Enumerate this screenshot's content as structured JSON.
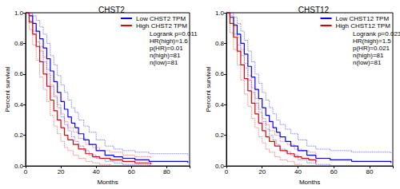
{
  "chart_data": [
    {
      "type": "line",
      "title": "CHST2",
      "x_label": "Months",
      "y_label": "Percent survival",
      "xlim": [
        0,
        93
      ],
      "xticks": [
        0,
        20,
        40,
        60,
        80
      ],
      "ylim": [
        0,
        1
      ],
      "yticks": [
        {
          "value": 0,
          "label": "0.0"
        },
        0.2,
        0.4,
        0.6,
        0.8,
        {
          "value": 1,
          "label": "1.0"
        }
      ],
      "grid": false,
      "legend": "upper right",
      "annotations": [
        "Logrank p=0.011",
        "HR(high)=1.6",
        "p(HR)=0.01",
        "n(high)=81",
        "n(low)=81"
      ],
      "series": [
        {
          "name": "Low CHST2 TPM",
          "color": "#0000ff",
          "line_style": "solid",
          "x": [
            0,
            2,
            4,
            6,
            8,
            10,
            12,
            14,
            16,
            18,
            20,
            22,
            24,
            26,
            28,
            30,
            33,
            36,
            40,
            45,
            50,
            55,
            62,
            70,
            92
          ],
          "values": [
            1.0,
            0.98,
            0.93,
            0.88,
            0.83,
            0.77,
            0.7,
            0.62,
            0.55,
            0.48,
            0.42,
            0.37,
            0.32,
            0.28,
            0.25,
            0.21,
            0.17,
            0.14,
            0.1,
            0.07,
            0.06,
            0.05,
            0.04,
            0.03,
            0.02
          ],
          "ci_lower": [
            1.0,
            0.95,
            0.88,
            0.81,
            0.75,
            0.68,
            0.6,
            0.52,
            0.45,
            0.38,
            0.32,
            0.27,
            0.23,
            0.19,
            0.16,
            0.13,
            0.1,
            0.07,
            0.05,
            0.03,
            0.02,
            0.01,
            0.01,
            0.0,
            0.0
          ],
          "ci_upper": [
            1.0,
            1.0,
            0.98,
            0.95,
            0.91,
            0.86,
            0.8,
            0.72,
            0.66,
            0.59,
            0.53,
            0.48,
            0.43,
            0.38,
            0.35,
            0.3,
            0.26,
            0.22,
            0.17,
            0.13,
            0.11,
            0.1,
            0.09,
            0.08,
            0.07
          ]
        },
        {
          "name": "High CHST2 TPM",
          "color": "#e00000",
          "line_style": "solid",
          "x": [
            0,
            2,
            4,
            6,
            8,
            10,
            12,
            14,
            16,
            18,
            20,
            22,
            24,
            27,
            30,
            34,
            38,
            42,
            48,
            55,
            62,
            71
          ],
          "values": [
            1.0,
            0.94,
            0.86,
            0.78,
            0.68,
            0.6,
            0.52,
            0.43,
            0.36,
            0.3,
            0.25,
            0.2,
            0.17,
            0.14,
            0.11,
            0.08,
            0.06,
            0.05,
            0.04,
            0.03,
            0.02,
            0.01
          ],
          "ci_lower": [
            1.0,
            0.89,
            0.79,
            0.69,
            0.58,
            0.5,
            0.42,
            0.33,
            0.26,
            0.21,
            0.16,
            0.12,
            0.1,
            0.07,
            0.05,
            0.03,
            0.02,
            0.01,
            0.0,
            0.0,
            0.0,
            0.0
          ],
          "ci_upper": [
            1.0,
            0.99,
            0.93,
            0.87,
            0.78,
            0.71,
            0.63,
            0.53,
            0.46,
            0.4,
            0.34,
            0.29,
            0.25,
            0.22,
            0.18,
            0.14,
            0.12,
            0.1,
            0.09,
            0.07,
            0.06,
            0.05
          ]
        }
      ]
    },
    {
      "type": "line",
      "title": "CHST12",
      "x_label": "Months",
      "y_label": "Percent survival",
      "xlim": [
        0,
        93
      ],
      "xticks": [
        0,
        20,
        40,
        60,
        80
      ],
      "ylim": [
        0,
        1
      ],
      "yticks": [
        {
          "value": 0,
          "label": "0.0"
        },
        0.2,
        0.4,
        0.6,
        0.8,
        {
          "value": 1,
          "label": "1.0"
        }
      ],
      "grid": false,
      "legend": "upper right",
      "annotations": [
        "Logrank p=0.023",
        "HR(high)=1.5",
        "p(HR)=0.021",
        "n(high)=81",
        "n(low)=81"
      ],
      "series": [
        {
          "name": "Low CHST12 TPM",
          "color": "#0000ff",
          "line_style": "solid",
          "x": [
            0,
            2,
            4,
            6,
            8,
            10,
            12,
            14,
            16,
            18,
            20,
            22,
            24,
            26,
            28,
            30,
            33,
            36,
            40,
            45,
            50,
            58,
            70,
            92
          ],
          "values": [
            1.0,
            0.97,
            0.92,
            0.86,
            0.8,
            0.73,
            0.65,
            0.58,
            0.5,
            0.44,
            0.38,
            0.33,
            0.29,
            0.25,
            0.22,
            0.19,
            0.16,
            0.13,
            0.1,
            0.07,
            0.05,
            0.04,
            0.03,
            0.02
          ],
          "ci_lower": [
            1.0,
            0.93,
            0.86,
            0.79,
            0.72,
            0.64,
            0.56,
            0.48,
            0.41,
            0.35,
            0.29,
            0.24,
            0.2,
            0.17,
            0.14,
            0.11,
            0.09,
            0.07,
            0.04,
            0.02,
            0.01,
            0.0,
            0.0,
            0.0
          ],
          "ci_upper": [
            1.0,
            1.0,
            0.97,
            0.93,
            0.88,
            0.82,
            0.75,
            0.68,
            0.6,
            0.54,
            0.48,
            0.43,
            0.38,
            0.34,
            0.3,
            0.27,
            0.24,
            0.21,
            0.17,
            0.13,
            0.11,
            0.1,
            0.09,
            0.08
          ]
        },
        {
          "name": "High CHST12 TPM",
          "color": "#e00000",
          "line_style": "solid",
          "x": [
            0,
            2,
            4,
            6,
            8,
            10,
            12,
            14,
            16,
            18,
            20,
            22,
            24,
            27,
            30,
            34,
            38,
            42,
            46,
            50
          ],
          "values": [
            1.0,
            0.93,
            0.84,
            0.75,
            0.66,
            0.57,
            0.49,
            0.41,
            0.34,
            0.28,
            0.23,
            0.19,
            0.16,
            0.13,
            0.1,
            0.08,
            0.06,
            0.05,
            0.04,
            0.02
          ],
          "ci_lower": [
            1.0,
            0.87,
            0.76,
            0.66,
            0.56,
            0.47,
            0.39,
            0.31,
            0.25,
            0.19,
            0.15,
            0.11,
            0.09,
            0.06,
            0.04,
            0.03,
            0.01,
            0.0,
            0.0,
            0.0
          ],
          "ci_upper": [
            1.0,
            0.98,
            0.91,
            0.84,
            0.76,
            0.67,
            0.59,
            0.51,
            0.44,
            0.37,
            0.31,
            0.27,
            0.23,
            0.2,
            0.16,
            0.14,
            0.11,
            0.1,
            0.09,
            0.07
          ]
        }
      ]
    }
  ]
}
